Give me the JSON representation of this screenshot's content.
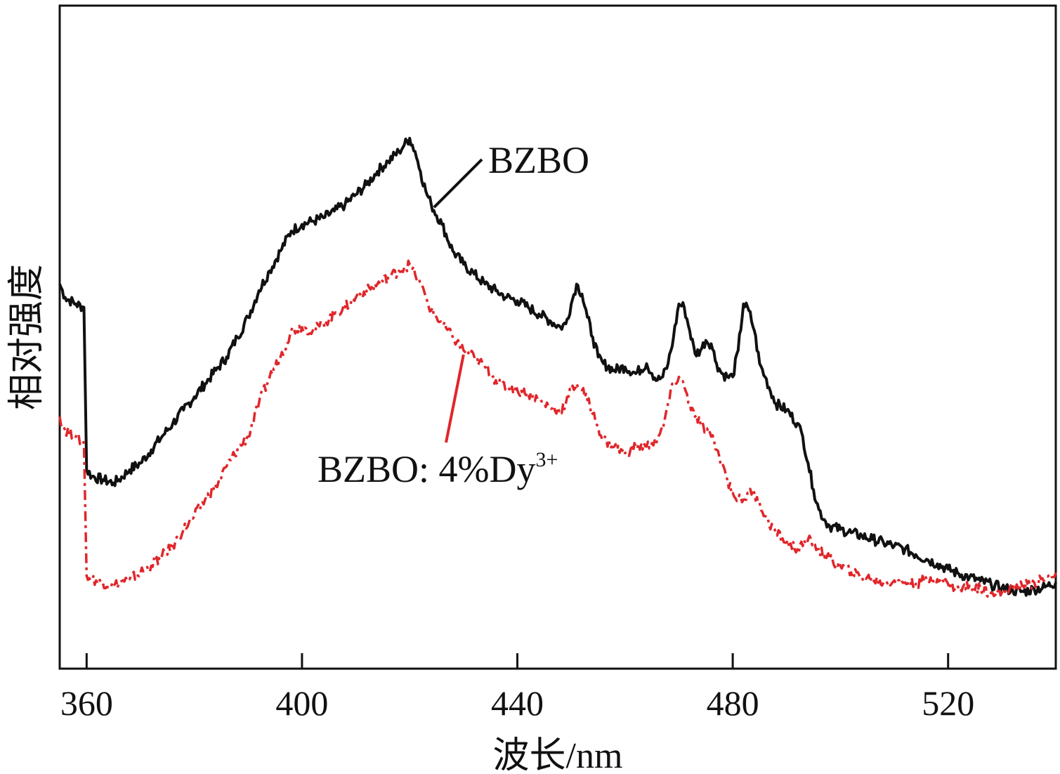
{
  "chart_data": {
    "type": "line",
    "xlabel": "波长/nm",
    "ylabel": "相对强度",
    "xlim": [
      355,
      540
    ],
    "ylim": [
      0,
      100
    ],
    "x_ticks": [
      360,
      400,
      440,
      480,
      520
    ],
    "x_tick_labels": [
      "360",
      "400",
      "440",
      "480",
      "520"
    ],
    "y_ticks_shown": false,
    "grid": false,
    "series": [
      {
        "name": "BZBO",
        "color": "#111111",
        "line_style": "solid",
        "x": [
          355,
          356,
          358,
          359.5,
          360,
          361,
          363,
          365,
          366,
          368,
          370,
          372,
          374,
          376,
          378,
          380,
          382,
          384,
          386,
          388,
          390,
          392,
          394,
          396,
          398,
          400,
          402,
          404,
          406,
          408,
          410,
          412,
          414,
          416,
          418,
          419,
          420,
          421,
          422,
          423,
          424,
          426,
          428,
          430,
          432,
          434,
          436,
          438,
          440,
          442,
          444,
          446,
          448,
          449,
          450,
          451,
          452,
          453,
          454,
          455,
          456,
          458,
          460,
          462,
          464,
          465,
          466,
          467,
          468,
          469,
          470,
          471,
          472,
          473,
          474,
          475,
          476,
          477,
          478,
          479,
          480,
          481,
          482,
          483,
          484,
          485,
          486,
          488,
          490,
          492,
          493,
          494,
          495,
          496,
          497,
          498,
          500,
          502,
          504,
          506,
          508,
          510,
          512,
          514,
          516,
          518,
          520,
          522,
          524,
          526,
          528,
          530,
          532,
          534,
          536,
          538,
          540
        ],
        "values": [
          58,
          56,
          55,
          54.5,
          30,
          29,
          28.5,
          28,
          28.5,
          30,
          31,
          33,
          35,
          37,
          39,
          41,
          43,
          45,
          47,
          50,
          53,
          57,
          60,
          63,
          66,
          67,
          67.5,
          68,
          69,
          70,
          71.5,
          73,
          75,
          76.5,
          78,
          79,
          80,
          78,
          75,
          72,
          70,
          67,
          63,
          61,
          59.5,
          58,
          57,
          56,
          55.5,
          54.5,
          53.5,
          52.5,
          51.5,
          52,
          55,
          58,
          56.5,
          53,
          50,
          47,
          46,
          45,
          45.5,
          44.5,
          46,
          44.5,
          43.5,
          44,
          46,
          50,
          55,
          54.5,
          51,
          47.5,
          48,
          49.5,
          49,
          46,
          44.5,
          44,
          44,
          48,
          55,
          54,
          51,
          46,
          44,
          40,
          39,
          37,
          35,
          31,
          27,
          24,
          22.5,
          21.5,
          21,
          20.5,
          20,
          19.5,
          19,
          18.5,
          18,
          17.2,
          16.5,
          15.8,
          15,
          14.3,
          13.8,
          13.2,
          12.7,
          12.2,
          11.8,
          11.6,
          12,
          12.3,
          13
        ]
      },
      {
        "name": "BZBO: 4%Dy3+",
        "color": "#e0262a",
        "line_style": "dashed",
        "x": [
          355,
          356,
          358,
          359.5,
          360,
          361,
          363,
          365,
          366,
          368,
          370,
          372,
          374,
          376,
          378,
          380,
          382,
          384,
          386,
          388,
          390,
          392,
          394,
          396,
          398,
          400,
          402,
          404,
          406,
          408,
          410,
          412,
          414,
          416,
          418,
          419,
          420,
          421,
          422,
          423,
          424,
          426,
          428,
          430,
          432,
          434,
          436,
          438,
          440,
          442,
          444,
          446,
          448,
          449,
          450,
          451,
          452,
          453,
          454,
          455,
          456,
          458,
          460,
          462,
          464,
          465,
          466,
          467,
          468,
          469,
          470,
          471,
          472,
          473,
          474,
          475,
          476,
          477,
          478,
          479,
          480,
          481,
          482,
          483,
          484,
          485,
          486,
          488,
          490,
          492,
          493,
          494,
          495,
          496,
          497,
          498,
          500,
          502,
          504,
          506,
          508,
          510,
          512,
          514,
          516,
          518,
          520,
          522,
          524,
          526,
          528,
          530,
          532,
          534,
          536,
          538,
          540
        ],
        "values": [
          38,
          36,
          35,
          34,
          14,
          13.5,
          13,
          12.5,
          13,
          13.5,
          14.5,
          15.5,
          17,
          18.5,
          21,
          23,
          25.5,
          27.5,
          30.5,
          33,
          35,
          40,
          44,
          47,
          51,
          51.5,
          51,
          52,
          53.5,
          54.5,
          56,
          57,
          58,
          59,
          60,
          60.5,
          61,
          59.5,
          58,
          56,
          54,
          52,
          50,
          48,
          47,
          45.5,
          43.5,
          42.5,
          42,
          41.5,
          40.5,
          39.5,
          39,
          40,
          42,
          43,
          42,
          40.5,
          38.5,
          36.5,
          34.5,
          33.5,
          32.5,
          33.5,
          33.5,
          34,
          34.5,
          36,
          40,
          43,
          44,
          42.5,
          40,
          38,
          37,
          36,
          35,
          33,
          31,
          28.5,
          26.5,
          25.5,
          25.5,
          26.5,
          26.5,
          25,
          23,
          20.5,
          19,
          18,
          18.5,
          19.5,
          19,
          18,
          17,
          16.5,
          15.5,
          14.5,
          13.8,
          13.5,
          13,
          13.3,
          13,
          12.8,
          13.5,
          13.5,
          12.8,
          12,
          12.5,
          12,
          11.5,
          11.5,
          12.2,
          12.5,
          13,
          13.5,
          14.5
        ]
      }
    ],
    "annotations": [
      {
        "text": "BZBO",
        "series": 0
      },
      {
        "text": "BZBO: 4%Dy",
        "superscript": "3+",
        "series": 1
      }
    ]
  }
}
